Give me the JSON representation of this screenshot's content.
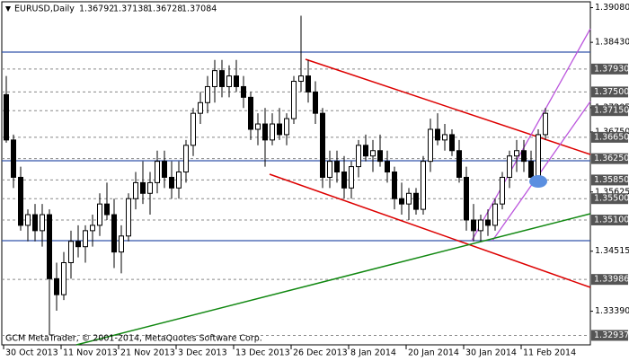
{
  "header": {
    "symbol": "EURUSD,Daily",
    "ohlc": [
      "1.36792",
      "1.37138",
      "1.36728",
      "1.37084"
    ]
  },
  "watermark": "GCM MetaTrader, © 2001-2014, MetaQuotes Software Corp.",
  "chart_data": {
    "type": "candlestick",
    "categories": [
      "30 Oct 2013",
      null,
      null,
      null,
      null,
      null,
      null,
      null,
      "11 Nov 2013",
      null,
      null,
      null,
      null,
      null,
      null,
      null,
      "21 Nov 2013",
      null,
      null,
      null,
      null,
      null,
      null,
      null,
      "3 Dec 2013",
      null,
      null,
      null,
      null,
      null,
      null,
      null,
      "13 Dec 2013",
      null,
      null,
      null,
      null,
      null,
      null,
      null,
      "26 Dec 2013",
      null,
      null,
      null,
      null,
      null,
      null,
      null,
      "8 Jan 2014",
      null,
      null,
      null,
      null,
      null,
      null,
      null,
      "20 Jan 2014",
      null,
      null,
      null,
      null,
      null,
      null,
      null,
      "30 Jan 2014",
      null,
      null,
      null,
      null,
      null,
      null,
      null,
      "11 Feb 2014",
      null,
      null,
      null
    ],
    "open": [
      1.3745,
      1.366,
      1.359,
      1.35,
      1.352,
      1.349,
      1.352,
      1.34,
      1.337,
      1.343,
      1.347,
      1.346,
      1.349,
      1.35,
      1.354,
      1.352,
      1.345,
      1.348,
      1.355,
      1.358,
      1.356,
      1.358,
      1.362,
      1.359,
      1.357,
      1.36,
      1.365,
      1.371,
      1.373,
      1.376,
      1.379,
      1.376,
      1.378,
      1.376,
      1.374,
      1.368,
      1.369,
      1.366,
      1.369,
      1.367,
      1.37,
      1.377,
      1.378,
      1.375,
      1.371,
      1.359,
      1.362,
      1.36,
      1.357,
      1.361,
      1.365,
      1.363,
      1.364,
      1.362,
      1.36,
      1.355,
      1.354,
      1.356,
      1.353,
      1.362,
      1.368,
      1.366,
      1.367,
      1.364,
      1.359,
      1.351,
      1.349,
      1.351,
      1.35,
      1.354,
      1.359,
      1.363,
      1.364,
      1.362,
      1.359,
      1.367
    ],
    "high": [
      1.378,
      1.367,
      1.361,
      1.353,
      1.354,
      1.354,
      1.353,
      1.343,
      1.345,
      1.349,
      1.35,
      1.35,
      1.352,
      1.356,
      1.358,
      1.355,
      1.35,
      1.356,
      1.36,
      1.362,
      1.36,
      1.364,
      1.364,
      1.362,
      1.362,
      1.366,
      1.372,
      1.375,
      1.378,
      1.381,
      1.381,
      1.38,
      1.381,
      1.378,
      1.375,
      1.371,
      1.372,
      1.371,
      1.372,
      1.371,
      1.378,
      1.3893,
      1.381,
      1.377,
      1.372,
      1.364,
      1.364,
      1.363,
      1.362,
      1.366,
      1.367,
      1.366,
      1.367,
      1.364,
      1.361,
      1.358,
      1.357,
      1.357,
      1.363,
      1.37,
      1.371,
      1.369,
      1.368,
      1.366,
      1.361,
      1.354,
      1.352,
      1.353,
      1.355,
      1.36,
      1.364,
      1.366,
      1.366,
      1.364,
      1.368,
      1.372
    ],
    "low": [
      1.3655,
      1.357,
      1.349,
      1.347,
      1.347,
      1.346,
      1.3295,
      1.334,
      1.336,
      1.34,
      1.344,
      1.343,
      1.346,
      1.348,
      1.351,
      1.342,
      1.341,
      1.347,
      1.353,
      1.354,
      1.352,
      1.356,
      1.357,
      1.355,
      1.355,
      1.358,
      1.363,
      1.369,
      1.371,
      1.373,
      1.374,
      1.374,
      1.375,
      1.372,
      1.366,
      1.365,
      1.361,
      1.365,
      1.366,
      1.365,
      1.369,
      1.375,
      1.373,
      1.369,
      1.357,
      1.357,
      1.358,
      1.355,
      1.355,
      1.359,
      1.362,
      1.36,
      1.361,
      1.358,
      1.353,
      1.352,
      1.351,
      1.352,
      1.352,
      1.36,
      1.365,
      1.364,
      1.363,
      1.358,
      1.349,
      1.347,
      1.347,
      1.348,
      1.349,
      1.353,
      1.357,
      1.36,
      1.36,
      1.358,
      1.358,
      1.366
    ],
    "close": [
      1.366,
      1.359,
      1.35,
      1.352,
      1.349,
      1.352,
      1.34,
      1.337,
      1.343,
      1.347,
      1.346,
      1.349,
      1.35,
      1.354,
      1.352,
      1.345,
      1.348,
      1.355,
      1.358,
      1.356,
      1.358,
      1.362,
      1.359,
      1.357,
      1.36,
      1.365,
      1.371,
      1.373,
      1.376,
      1.379,
      1.376,
      1.378,
      1.376,
      1.374,
      1.368,
      1.369,
      1.366,
      1.369,
      1.367,
      1.37,
      1.377,
      1.378,
      1.375,
      1.371,
      1.359,
      1.362,
      1.36,
      1.357,
      1.361,
      1.365,
      1.363,
      1.364,
      1.362,
      1.36,
      1.355,
      1.354,
      1.356,
      1.353,
      1.362,
      1.368,
      1.366,
      1.367,
      1.364,
      1.359,
      1.351,
      1.349,
      1.351,
      1.35,
      1.354,
      1.359,
      1.363,
      1.364,
      1.362,
      1.359,
      1.367,
      1.371
    ],
    "ylim": [
      1.3276,
      1.3919
    ],
    "yticks": [
      {
        "value": 1.3908,
        "label": "1.39080"
      },
      {
        "value": 1.3843,
        "label": "1.38430"
      },
      1.37205,
      {
        "value": 1.3675,
        "label": "1.36750"
      },
      1.35625,
      1.34515,
      {
        "value": 1.3339,
        "label": "1.33390"
      }
    ],
    "levels": [
      {
        "value": 1.3793,
        "label": "1.37930"
      },
      {
        "value": 1.375,
        "label": "1.37500"
      },
      {
        "value": 1.3715,
        "label": "1.37150"
      },
      {
        "value": 1.3665,
        "label": "1.36650"
      },
      {
        "value": 1.3625,
        "label": "1.36250"
      },
      {
        "value": 1.3585,
        "label": "1.35850"
      },
      {
        "value": 1.355,
        "label": "1.35500"
      },
      {
        "value": 1.351,
        "label": "1.35100"
      },
      1.33986,
      1.32937
    ],
    "up_color": "#ffffff",
    "down_color": "#000000",
    "level_color": "#555555"
  }
}
